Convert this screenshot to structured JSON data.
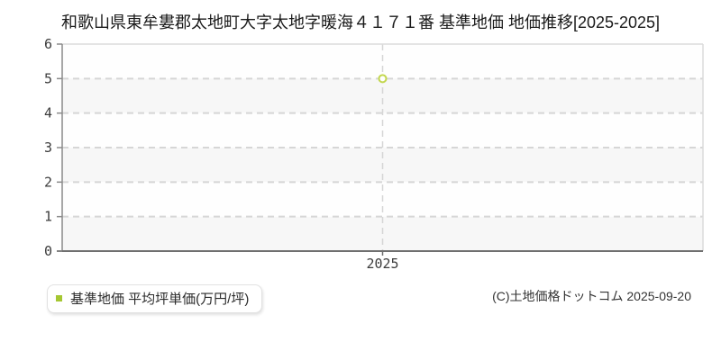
{
  "page": {
    "title": "和歌山県東牟婁郡太地町大字太地字暖海４１７１番 基準地価 地価推移[2025-2025]",
    "copyright": "(C)土地価格ドットコム 2025-09-20"
  },
  "legend": {
    "label": "基準地価 平均坪単価(万円/坪)",
    "marker_color": "#a5c732"
  },
  "chart_data": {
    "type": "scatter",
    "title": "和歌山県東牟婁郡太地町大字太地字暖海４１７１番 基準地価 地価推移[2025-2025]",
    "x": [
      2025
    ],
    "xticks": [
      "2025"
    ],
    "series": [
      {
        "name": "基準地価 平均坪単価(万円/坪)",
        "values": [
          5
        ]
      }
    ],
    "xlabel": "",
    "ylabel": "",
    "ylim": [
      0,
      6
    ],
    "ytick_step": 1,
    "grid": true,
    "grid_style": "dashed",
    "legend_position": "bottom-left",
    "colors": {
      "marker_stroke": "#c3d74e",
      "marker_fill": "#ffffff",
      "grid": "#d6d6d6",
      "axis": "#6f6f6f",
      "border_light": "#dcdcdc",
      "band_light": "#fefefe",
      "band_shade": "#f7f7f7",
      "tick_text": "#3c3c3c"
    }
  }
}
